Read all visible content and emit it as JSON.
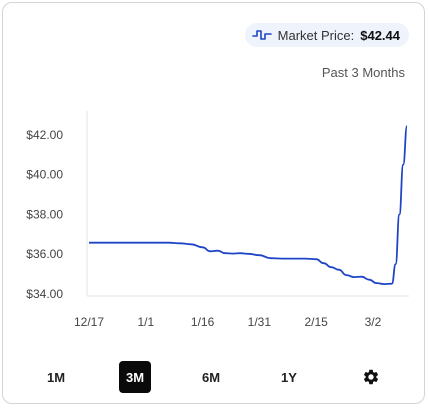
{
  "market_price": {
    "icon": "line-trend-icon",
    "label": "Market Price:",
    "value": "$42.44"
  },
  "period": "Past 3 Months",
  "range_buttons": [
    {
      "label": "1M",
      "active": false
    },
    {
      "label": "3M",
      "active": true
    },
    {
      "label": "6M",
      "active": false
    },
    {
      "label": "1Y",
      "active": false
    }
  ],
  "settings_icon": "gear-icon",
  "colors": {
    "line": "#1f45c6",
    "active_button": "#0a0a0a",
    "pill": "#eef3fc"
  },
  "chart_data": {
    "type": "line",
    "title": "",
    "xlabel": "",
    "ylabel": "",
    "x_tick_labels": [
      "12/17",
      "1/1",
      "1/16",
      "1/31",
      "2/15",
      "3/2"
    ],
    "y_tick_labels": [
      "$34.00",
      "$36.00",
      "$38.00",
      "$40.00",
      "$42.00"
    ],
    "ylim": [
      34,
      42.6
    ],
    "grid": false,
    "series": [
      {
        "x": [
          "12/17",
          "12/20",
          "12/23",
          "12/26",
          "12/29",
          "1/1",
          "1/4",
          "1/7",
          "1/10",
          "1/13",
          "1/16",
          "1/18",
          "1/20",
          "1/22",
          "1/24",
          "1/26",
          "1/28",
          "1/31",
          "2/3",
          "2/6",
          "2/9",
          "2/12",
          "2/15",
          "2/17",
          "2/19",
          "2/21",
          "2/23",
          "2/25",
          "2/27",
          "3/1",
          "3/3",
          "3/5",
          "3/7",
          "3/8",
          "3/9",
          "3/10",
          "3/11"
        ],
        "values": [
          36.58,
          36.58,
          36.58,
          36.58,
          36.58,
          36.58,
          36.58,
          36.58,
          36.55,
          36.5,
          36.35,
          36.15,
          36.18,
          36.05,
          36.03,
          36.05,
          36.02,
          35.95,
          35.8,
          35.78,
          35.78,
          35.78,
          35.75,
          35.55,
          35.35,
          35.22,
          34.95,
          34.85,
          34.87,
          34.72,
          34.55,
          34.5,
          34.52,
          35.5,
          38.0,
          40.5,
          42.44
        ]
      }
    ]
  }
}
